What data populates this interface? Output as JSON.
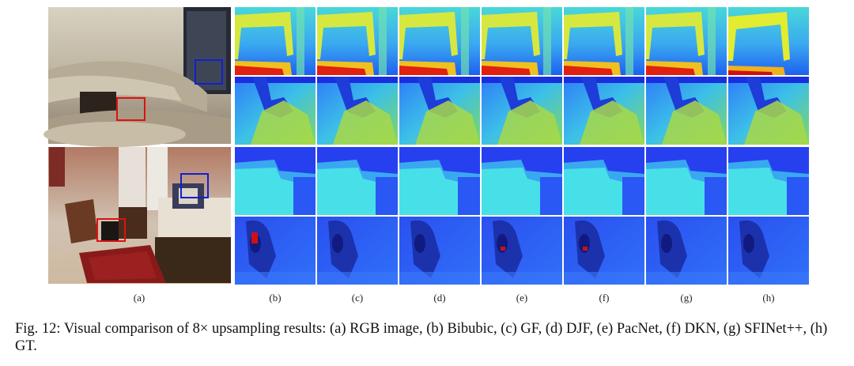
{
  "figure": {
    "subfigure_labels": [
      "(a)",
      "(b)",
      "(c)",
      "(d)",
      "(e)",
      "(f)",
      "(g)",
      "(h)"
    ],
    "methods": [
      "RGB image",
      "Bibubic",
      "GF",
      "DJF",
      "PacNet",
      "DKN",
      "SFINet++",
      "GT"
    ],
    "scenes": [
      "living-room",
      "bedroom"
    ],
    "highlight_colors": {
      "zoom_box_1": "#e01010",
      "zoom_box_2": "#1020d0"
    },
    "colormap": "jet"
  },
  "caption": {
    "text": "Fig. 12: Visual comparison of 8× upsampling results: (a) RGB image, (b) Bibubic, (c) GF, (d) DJF, (e) PacNet, (f) DKN, (g) SFINet++, (h) GT."
  }
}
